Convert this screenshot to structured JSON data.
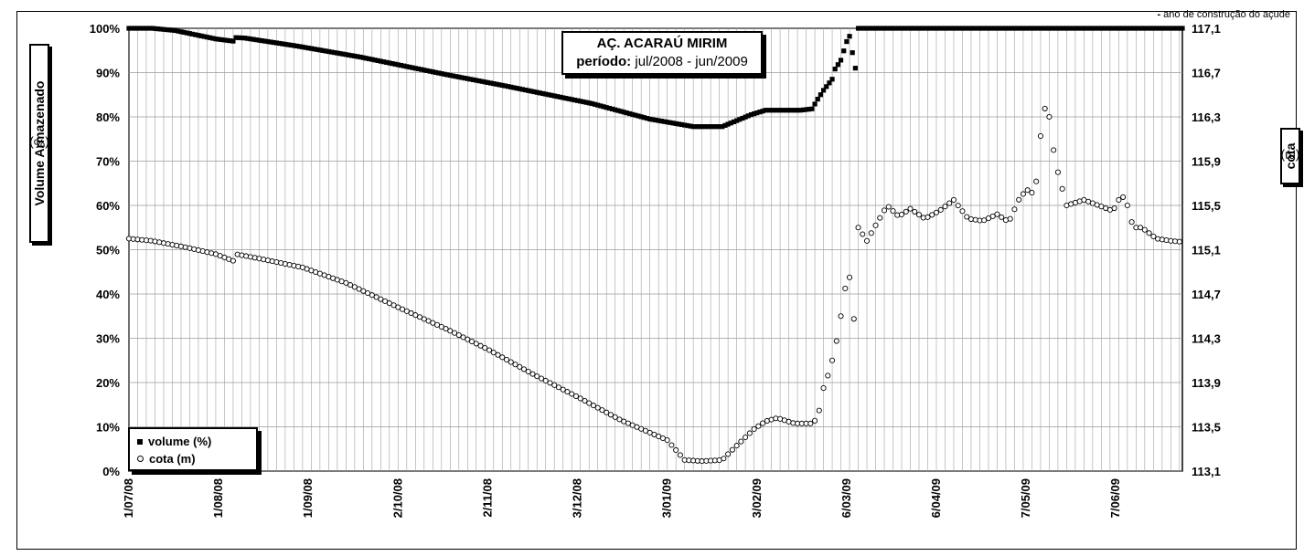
{
  "corner_note": {
    "mark": "-",
    "text": "ano de construção do açude"
  },
  "title": {
    "main": "AÇ. ACARAÚ MIRIM",
    "period_label": "período:",
    "period_value": "jul/2008 - jun/2009"
  },
  "left_axis_label": {
    "name": "Volume Armazenado",
    "unit": "(%)"
  },
  "right_axis_label": {
    "name": "cota",
    "unit": "(m)"
  },
  "legend": {
    "volume": "volume (%)",
    "cota": "cota (m)"
  },
  "chart_data": {
    "type": "scatter",
    "x_dates": [
      "1/07/08",
      "1/08/08",
      "1/09/08",
      "2/10/08",
      "2/11/08",
      "3/12/08",
      "3/01/09",
      "3/02/09",
      "6/03/09",
      "6/04/09",
      "7/05/09",
      "7/06/09"
    ],
    "x_tick_days": [
      0,
      31,
      62,
      93,
      124,
      155,
      186,
      217,
      248,
      279,
      310,
      341
    ],
    "x_range_days": [
      0,
      364
    ],
    "y_left": {
      "ticks": [
        "0%",
        "10%",
        "20%",
        "30%",
        "40%",
        "50%",
        "60%",
        "70%",
        "80%",
        "90%",
        "100%"
      ],
      "range": [
        0,
        100
      ]
    },
    "y_right": {
      "ticks": [
        "113,1",
        "113,5",
        "113,9",
        "114,3",
        "114,7",
        "115,1",
        "115,5",
        "115,9",
        "116,3",
        "116,7",
        "117,1"
      ],
      "range": [
        113.1,
        117.1
      ]
    },
    "grid": true,
    "series": [
      {
        "name": "volume (%)",
        "marker": "square",
        "axis": "left",
        "points": [
          [
            0,
            100
          ],
          [
            8,
            100
          ],
          [
            16,
            99.5
          ],
          [
            30,
            97.6
          ],
          [
            36,
            97.1
          ],
          [
            37,
            97.9
          ],
          [
            40,
            97.8
          ],
          [
            58,
            96
          ],
          [
            80,
            93.5
          ],
          [
            110,
            89.5
          ],
          [
            130,
            87
          ],
          [
            160,
            83
          ],
          [
            180,
            79.5
          ],
          [
            195,
            77.8
          ],
          [
            205,
            77.8
          ],
          [
            215,
            80.5
          ],
          [
            220,
            81.5
          ],
          [
            228,
            81.5
          ],
          [
            232,
            81.5
          ],
          [
            236,
            81.8
          ],
          [
            238,
            84
          ],
          [
            240,
            86
          ],
          [
            243,
            88.5
          ],
          [
            244,
            90.8
          ],
          [
            246,
            92.8
          ],
          [
            248,
            97
          ],
          [
            249,
            98.2
          ],
          [
            250,
            94.5
          ],
          [
            251,
            91
          ],
          [
            252,
            100
          ],
          [
            364,
            100
          ]
        ]
      },
      {
        "name": "cota (m)",
        "marker": "circle",
        "axis": "right",
        "points": [
          [
            0,
            115.2
          ],
          [
            8,
            115.18
          ],
          [
            20,
            115.12
          ],
          [
            30,
            115.06
          ],
          [
            36,
            115
          ],
          [
            37,
            115.06
          ],
          [
            45,
            115.02
          ],
          [
            60,
            114.94
          ],
          [
            75,
            114.8
          ],
          [
            93,
            114.58
          ],
          [
            110,
            114.38
          ],
          [
            124,
            114.2
          ],
          [
            140,
            113.97
          ],
          [
            155,
            113.77
          ],
          [
            170,
            113.56
          ],
          [
            186,
            113.38
          ],
          [
            192,
            113.2
          ],
          [
            198,
            113.19
          ],
          [
            205,
            113.2
          ],
          [
            208,
            113.28
          ],
          [
            212,
            113.38
          ],
          [
            216,
            113.48
          ],
          [
            220,
            113.55
          ],
          [
            224,
            113.58
          ],
          [
            230,
            113.53
          ],
          [
            236,
            113.53
          ],
          [
            238,
            113.58
          ],
          [
            240,
            113.85
          ],
          [
            242,
            114.0
          ],
          [
            244,
            114.2
          ],
          [
            245,
            114.35
          ],
          [
            246,
            114.5
          ],
          [
            247,
            114.6
          ],
          [
            248,
            114.9
          ],
          [
            249,
            114.85
          ],
          [
            250,
            114.6
          ],
          [
            251,
            114.35
          ],
          [
            252,
            115.3
          ],
          [
            255,
            115.18
          ],
          [
            258,
            115.32
          ],
          [
            262,
            115.5
          ],
          [
            266,
            115.4
          ],
          [
            270,
            115.47
          ],
          [
            275,
            115.38
          ],
          [
            280,
            115.45
          ],
          [
            285,
            115.55
          ],
          [
            290,
            115.38
          ],
          [
            295,
            115.36
          ],
          [
            300,
            115.42
          ],
          [
            304,
            115.35
          ],
          [
            308,
            115.58
          ],
          [
            311,
            115.65
          ],
          [
            313,
            115.58
          ],
          [
            316,
            116.4
          ],
          [
            318,
            116.3
          ],
          [
            320,
            115.9
          ],
          [
            324,
            115.5
          ],
          [
            330,
            115.55
          ],
          [
            335,
            115.5
          ],
          [
            340,
            115.45
          ],
          [
            343,
            115.6
          ],
          [
            345,
            115.5
          ],
          [
            347,
            115.3
          ],
          [
            350,
            115.3
          ],
          [
            355,
            115.2
          ],
          [
            360,
            115.18
          ],
          [
            364,
            115.17
          ]
        ]
      }
    ]
  }
}
